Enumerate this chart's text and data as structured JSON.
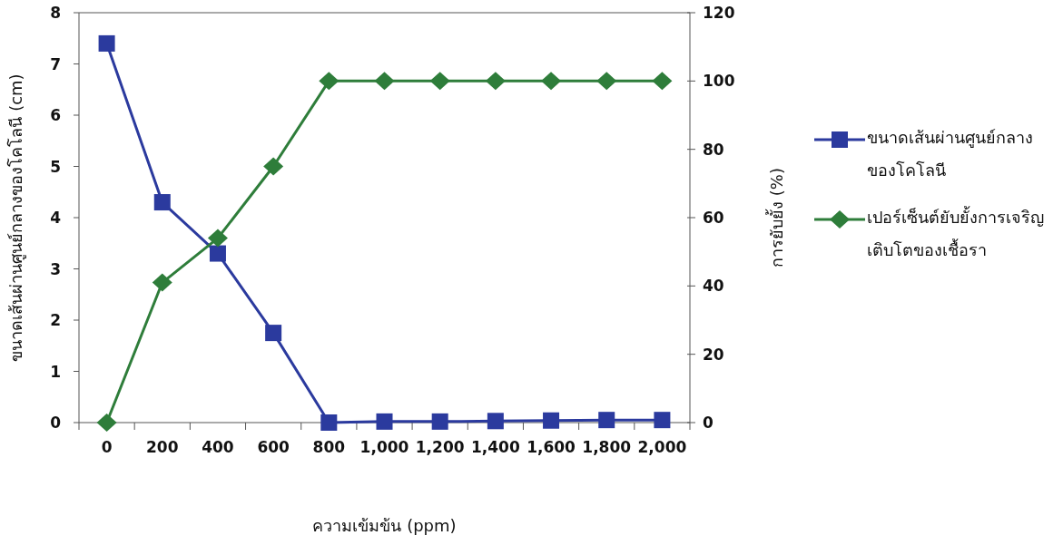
{
  "chart_data": {
    "type": "line",
    "categories": [
      "0",
      "200",
      "400",
      "600",
      "800",
      "1,000",
      "1,200",
      "1,400",
      "1,600",
      "1,800",
      "2,000"
    ],
    "xlabel": "ความเข้มข้น (ppm)",
    "ylabel": "ขนาดเส้นผ่านศูนย์กลางของโคโลนี (cm)",
    "y2label": "การยับยั้ง (%)",
    "ylim": [
      0,
      8
    ],
    "yticks": [
      0,
      1,
      2,
      3,
      4,
      5,
      6,
      7,
      8
    ],
    "y2lim": [
      0,
      120
    ],
    "y2ticks": [
      0,
      20,
      40,
      60,
      80,
      100,
      120
    ],
    "grid": false,
    "legend": "right",
    "series": [
      {
        "name": "ขนาดเส้นผ่านศูนย์กลางของโคโลนี",
        "color": "#2b3a9e",
        "marker": "square",
        "values": [
          7.4,
          4.3,
          3.3,
          1.75,
          0,
          0.02,
          0.02,
          0.03,
          0.04,
          0.05,
          0.05
        ]
      },
      {
        "name": "เปอร์เซ็นต์ยับยั้งการเจริญเติบโตของเชื้อรา",
        "color": "#2e7d3a",
        "marker": "diamond",
        "axis": "y2",
        "values": [
          0,
          41,
          54,
          75,
          100,
          100,
          100,
          100,
          100,
          100,
          100
        ]
      }
    ]
  }
}
